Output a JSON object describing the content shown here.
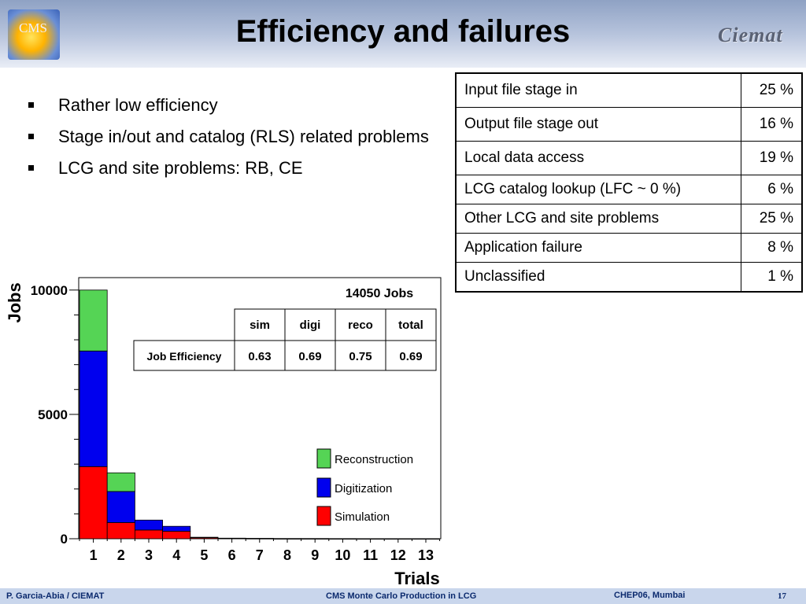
{
  "header": {
    "title": "Efficiency and failures",
    "logo_left": "CMS",
    "logo_right": "Ciemat"
  },
  "bullets": [
    "Rather low efficiency",
    "Stage in/out and catalog (RLS) related problems",
    "LCG and site problems: RB, CE"
  ],
  "failures": [
    {
      "label": "Input file stage in",
      "value": "25 %"
    },
    {
      "label": "Output file stage out",
      "value": "16 %"
    },
    {
      "label": "Local data access",
      "value": "19 %"
    },
    {
      "label": "LCG catalog lookup (LFC ~ 0 %)",
      "value": "6 %"
    },
    {
      "label": "Other LCG and site problems",
      "value": "25 %"
    },
    {
      "label": "Application failure",
      "value": "8 %"
    },
    {
      "label": "Unclassified",
      "value": "1 %"
    }
  ],
  "chart_data": {
    "type": "bar",
    "stacked": true,
    "xlabel": "Trials",
    "ylabel": "Jobs",
    "ylim": [
      0,
      10500
    ],
    "yticks": [
      0,
      5000,
      10000
    ],
    "yticklabels": [
      "0",
      "5000",
      "10000"
    ],
    "categories": [
      "1",
      "2",
      "3",
      "4",
      "5",
      "6",
      "7",
      "8",
      "9",
      "10",
      "11",
      "12",
      "13"
    ],
    "annotation": "14050 Jobs",
    "series": [
      {
        "name": "Simulation",
        "color": "#ff0000",
        "values": [
          2900,
          650,
          350,
          300,
          40,
          15,
          10,
          5,
          5,
          3,
          2,
          2,
          2
        ]
      },
      {
        "name": "Digitization",
        "color": "#0000ee",
        "values": [
          4650,
          1250,
          400,
          200,
          20,
          8,
          5,
          3,
          2,
          2,
          1,
          1,
          1
        ]
      },
      {
        "name": "Reconstruction",
        "color": "#55d455",
        "values": [
          2450,
          750,
          0,
          0,
          0,
          0,
          0,
          0,
          0,
          0,
          0,
          0,
          0
        ]
      }
    ],
    "legend_order": [
      "Reconstruction",
      "Digitization",
      "Simulation"
    ],
    "efficiency_table": {
      "row_label": "Job Efficiency",
      "headers": [
        "sim",
        "digi",
        "reco",
        "total"
      ],
      "values": [
        "0.63",
        "0.69",
        "0.75",
        "0.69"
      ]
    }
  },
  "footer": {
    "author": "P. Garcia-Abia / CIEMAT",
    "talk": "CMS Monte Carlo Production in LCG",
    "conf": "CHEP06, Mumbai",
    "page": "17"
  }
}
